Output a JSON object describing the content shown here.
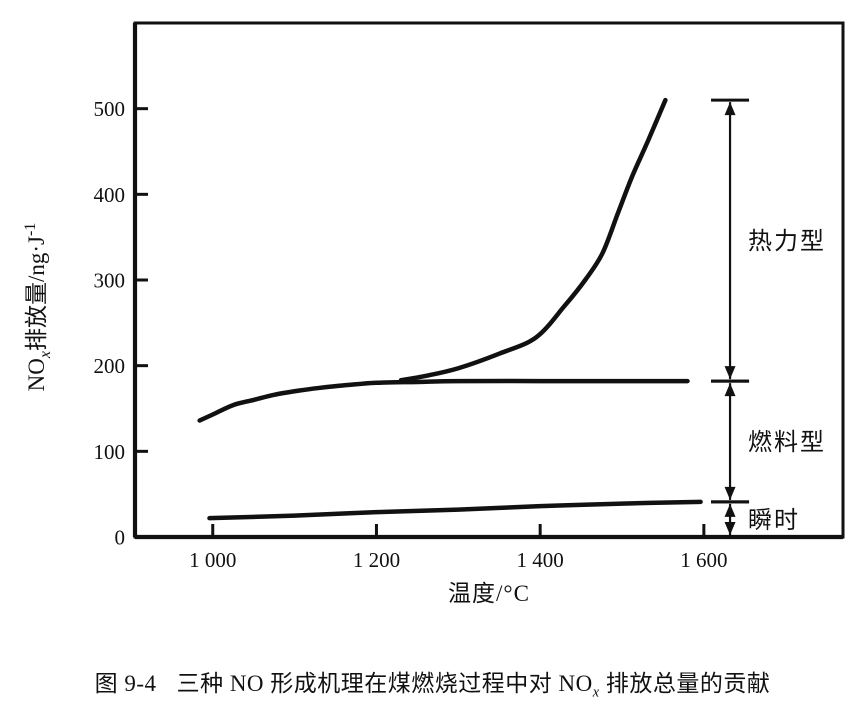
{
  "figure": {
    "caption": {
      "prefix": "图 9-4",
      "before_sub": "三种 NO 形成机理在煤燃烧过程中对 NO",
      "sub": "x",
      "after_sub": " 排放总量的贡献"
    }
  },
  "chart_data": {
    "type": "line",
    "title": "",
    "xlabel": "温度/°C",
    "ylabel": "NOx排放量/ng·J-1",
    "ylabel_parts": [
      "NO",
      "x",
      "排放量/ng·J",
      "-1"
    ],
    "xlim": [
      905,
      1770
    ],
    "ylim": [
      0,
      600
    ],
    "grid": false,
    "legend": "none",
    "x_ticks": [
      {
        "value": 1000,
        "label": "1 000"
      },
      {
        "value": 1200,
        "label": "1 200"
      },
      {
        "value": 1400,
        "label": "1 400"
      },
      {
        "value": 1600,
        "label": "1 600"
      }
    ],
    "y_ticks": [
      {
        "value": 0,
        "label": "0"
      },
      {
        "value": 100,
        "label": "100"
      },
      {
        "value": 200,
        "label": "200"
      },
      {
        "value": 300,
        "label": "300"
      },
      {
        "value": 400,
        "label": "400"
      },
      {
        "value": 500,
        "label": "500"
      }
    ],
    "series": [
      {
        "id": "fuel",
        "name": "燃料型",
        "points": [
          [
            984,
            136
          ],
          [
            1000,
            143
          ],
          [
            1025,
            154
          ],
          [
            1050,
            160
          ],
          [
            1075,
            166
          ],
          [
            1106,
            171
          ],
          [
            1130,
            174
          ],
          [
            1160,
            177
          ],
          [
            1200,
            180
          ],
          [
            1250,
            181
          ],
          [
            1300,
            182
          ],
          [
            1400,
            182
          ],
          [
            1500,
            182
          ],
          [
            1580,
            182
          ]
        ]
      },
      {
        "id": "thermal",
        "name": "热力型",
        "points": [
          [
            1230,
            183
          ],
          [
            1260,
            188
          ],
          [
            1300,
            197
          ],
          [
            1350,
            214
          ],
          [
            1395,
            233
          ],
          [
            1430,
            270
          ],
          [
            1455,
            300
          ],
          [
            1476,
            331
          ],
          [
            1495,
            378
          ],
          [
            1512,
            420
          ],
          [
            1532,
            463
          ],
          [
            1553,
            510
          ]
        ]
      },
      {
        "id": "prompt",
        "name": "瞬时",
        "points": [
          [
            996,
            22
          ],
          [
            1100,
            25
          ],
          [
            1200,
            29
          ],
          [
            1300,
            32
          ],
          [
            1400,
            36
          ],
          [
            1500,
            39
          ],
          [
            1596,
            41
          ]
        ]
      }
    ],
    "annotations": [
      {
        "label": "热力型",
        "from": 182,
        "to": 510
      },
      {
        "label": "燃料型",
        "from": 41,
        "to": 182
      },
      {
        "label": "瞬时",
        "from": 0,
        "to": 41
      }
    ],
    "annotation_x": 1632,
    "colors": {
      "ink": "#111111",
      "background": "#ffffff"
    }
  }
}
